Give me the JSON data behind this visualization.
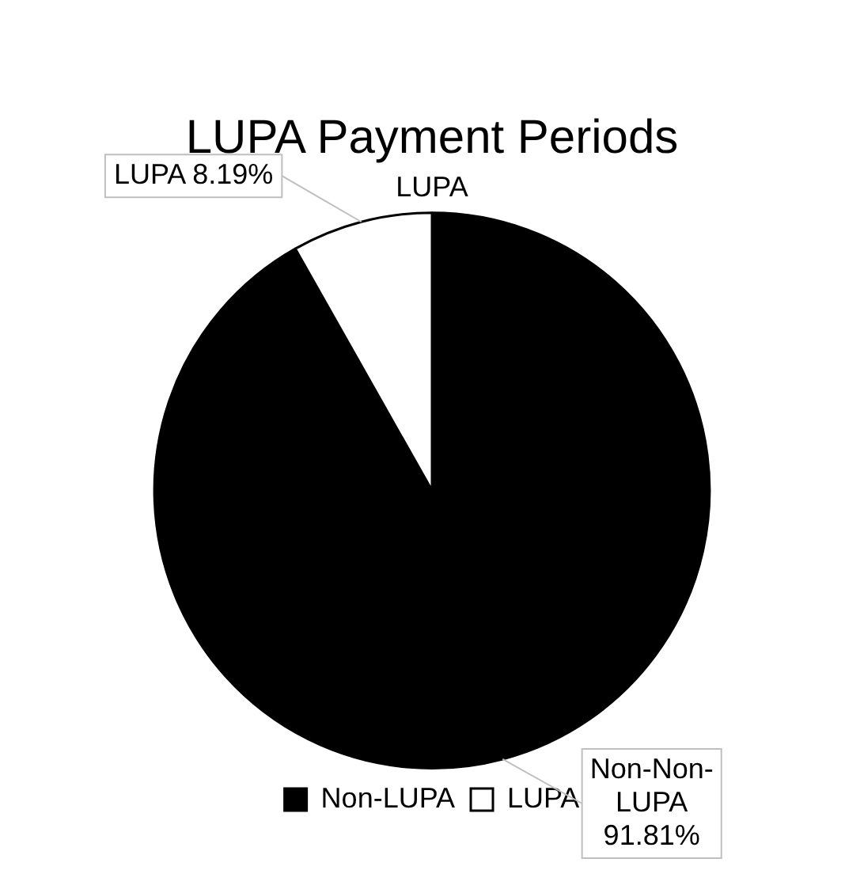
{
  "chart_data": {
    "type": "pie",
    "title": "LUPA Payment Periods",
    "subtitle": "LUPA",
    "categories": [
      "Non-LUPA",
      "LUPA"
    ],
    "values": [
      91.81,
      8.19
    ],
    "colors": [
      "#000000",
      "#ffffff"
    ],
    "value_labels": [
      "Non-Non-LUPA 91.81%",
      "LUPA 8.19%"
    ],
    "legend": "bottom"
  }
}
